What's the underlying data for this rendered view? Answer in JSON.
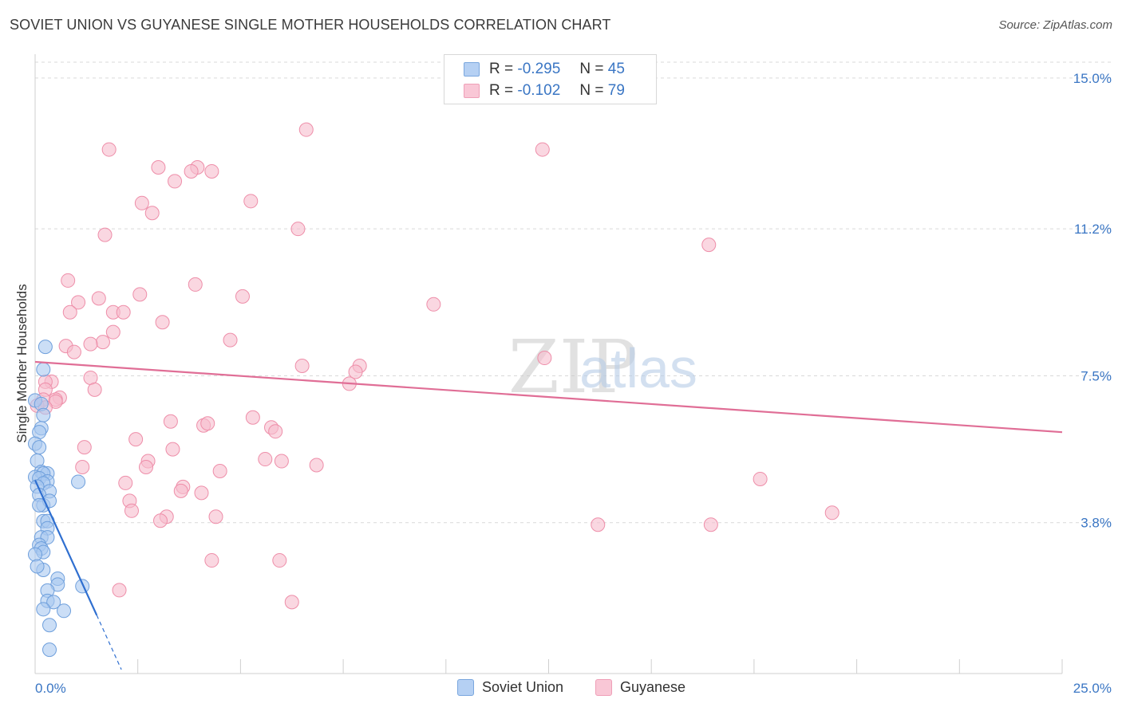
{
  "header": {
    "title": "SOVIET UNION VS GUYANESE SINGLE MOTHER HOUSEHOLDS CORRELATION CHART",
    "source": "Source: ZipAtlas.com"
  },
  "watermark": {
    "zip": "ZIP",
    "atlas": "atlas"
  },
  "legend": [
    {
      "r_label": "R =",
      "r_value": "-0.295",
      "n_label": "N =",
      "n_value": "45"
    },
    {
      "r_label": "R =",
      "r_value": "-0.102",
      "n_label": "N =",
      "n_value": "79"
    }
  ],
  "colors": {
    "soviet_fill": "#a9c8f0",
    "soviet_stroke": "#6e9fdc",
    "soviet_line": "#2f6fd0",
    "guyanese_fill": "#f7bccd",
    "guyanese_stroke": "#ee8ea9",
    "guyanese_line": "#e06e96",
    "value_text": "#3a76c4",
    "grid": "#d9d9d9"
  },
  "chart_data": {
    "type": "scatter",
    "title": "SOVIET UNION VS GUYANESE SINGLE MOTHER HOUSEHOLDS CORRELATION CHART",
    "xlabel": "",
    "ylabel": "Single Mother Households",
    "xlim": [
      0,
      25
    ],
    "ylim": [
      0,
      15.4
    ],
    "x_tick_labels": [
      {
        "value": 0,
        "label": "0.0%"
      },
      {
        "value": 25,
        "label": "25.0%"
      }
    ],
    "y_tick_labels": [
      {
        "value": 3.8,
        "label": "3.8%"
      },
      {
        "value": 7.5,
        "label": "7.5%"
      },
      {
        "value": 11.2,
        "label": "11.2%"
      },
      {
        "value": 15.0,
        "label": "15.0%"
      }
    ],
    "x_minor_ticks": [
      2.5,
      5,
      7.5,
      10,
      12.5,
      15,
      17.5,
      20,
      22.5,
      25
    ],
    "series": [
      {
        "name": "Soviet Union",
        "r": -0.295,
        "n": 45,
        "trend": {
          "x0": 0,
          "y0": 4.87,
          "x1": 1.5,
          "y1": 1.47,
          "dash_to_x": 2.1,
          "dash_to_y": 0.1
        },
        "points": [
          [
            0.25,
            8.23
          ],
          [
            0.2,
            7.66
          ],
          [
            0.0,
            6.88
          ],
          [
            0.15,
            6.79
          ],
          [
            0.2,
            6.51
          ],
          [
            0.15,
            6.18
          ],
          [
            0.1,
            6.08
          ],
          [
            0.0,
            5.79
          ],
          [
            0.1,
            5.7
          ],
          [
            0.05,
            5.36
          ],
          [
            0.15,
            5.08
          ],
          [
            0.3,
            5.04
          ],
          [
            0.2,
            5.04
          ],
          [
            0.0,
            4.95
          ],
          [
            0.1,
            4.92
          ],
          [
            0.3,
            4.84
          ],
          [
            0.2,
            4.79
          ],
          [
            0.05,
            4.71
          ],
          [
            0.35,
            4.59
          ],
          [
            0.1,
            4.5
          ],
          [
            0.2,
            4.24
          ],
          [
            0.35,
            4.35
          ],
          [
            0.1,
            4.24
          ],
          [
            1.05,
            4.83
          ],
          [
            0.2,
            3.84
          ],
          [
            0.3,
            3.84
          ],
          [
            0.3,
            3.66
          ],
          [
            0.15,
            3.43
          ],
          [
            0.3,
            3.43
          ],
          [
            0.1,
            3.24
          ],
          [
            0.15,
            3.15
          ],
          [
            0.2,
            3.06
          ],
          [
            0.2,
            2.61
          ],
          [
            0.55,
            2.39
          ],
          [
            0.55,
            2.24
          ],
          [
            1.15,
            2.2
          ],
          [
            0.3,
            2.09
          ],
          [
            0.3,
            1.83
          ],
          [
            0.45,
            1.8
          ],
          [
            0.2,
            1.62
          ],
          [
            0.7,
            1.58
          ],
          [
            0.35,
            1.22
          ],
          [
            0.35,
            0.6
          ],
          [
            0.0,
            3.0
          ],
          [
            0.05,
            2.7
          ]
        ]
      },
      {
        "name": "Guyanese",
        "r": -0.102,
        "n": 79,
        "trend": {
          "x0": 0,
          "y0": 7.85,
          "x1": 25,
          "y1": 6.08
        },
        "points": [
          [
            6.6,
            13.7
          ],
          [
            12.35,
            13.2
          ],
          [
            1.8,
            13.2
          ],
          [
            3.0,
            12.75
          ],
          [
            3.95,
            12.75
          ],
          [
            4.3,
            12.65
          ],
          [
            3.8,
            12.65
          ],
          [
            3.4,
            12.4
          ],
          [
            5.25,
            11.9
          ],
          [
            2.6,
            11.85
          ],
          [
            2.85,
            11.6
          ],
          [
            6.4,
            11.2
          ],
          [
            1.7,
            11.05
          ],
          [
            16.4,
            10.8
          ],
          [
            0.8,
            9.9
          ],
          [
            3.9,
            9.8
          ],
          [
            2.55,
            9.55
          ],
          [
            5.05,
            9.5
          ],
          [
            1.55,
            9.45
          ],
          [
            1.05,
            9.35
          ],
          [
            9.7,
            9.3
          ],
          [
            1.9,
            9.1
          ],
          [
            2.15,
            9.1
          ],
          [
            0.85,
            9.1
          ],
          [
            3.1,
            8.85
          ],
          [
            1.9,
            8.6
          ],
          [
            4.75,
            8.4
          ],
          [
            1.65,
            8.35
          ],
          [
            1.35,
            8.3
          ],
          [
            0.75,
            8.25
          ],
          [
            0.95,
            8.1
          ],
          [
            12.4,
            7.95
          ],
          [
            7.9,
            7.75
          ],
          [
            6.5,
            7.75
          ],
          [
            7.8,
            7.6
          ],
          [
            1.35,
            7.45
          ],
          [
            0.4,
            7.35
          ],
          [
            0.25,
            7.35
          ],
          [
            7.65,
            7.3
          ],
          [
            1.45,
            7.15
          ],
          [
            0.25,
            7.15
          ],
          [
            0.6,
            6.95
          ],
          [
            0.5,
            6.9
          ],
          [
            0.2,
            6.9
          ],
          [
            0.5,
            6.85
          ],
          [
            0.05,
            6.75
          ],
          [
            0.25,
            6.7
          ],
          [
            5.3,
            6.45
          ],
          [
            3.3,
            6.35
          ],
          [
            4.1,
            6.25
          ],
          [
            4.2,
            6.3
          ],
          [
            5.75,
            6.2
          ],
          [
            5.85,
            6.1
          ],
          [
            2.45,
            5.9
          ],
          [
            1.2,
            5.7
          ],
          [
            3.35,
            5.65
          ],
          [
            5.6,
            5.4
          ],
          [
            6.0,
            5.35
          ],
          [
            2.75,
            5.35
          ],
          [
            6.85,
            5.25
          ],
          [
            2.7,
            5.2
          ],
          [
            1.15,
            5.2
          ],
          [
            4.5,
            5.1
          ],
          [
            2.2,
            4.8
          ],
          [
            17.65,
            4.9
          ],
          [
            3.6,
            4.7
          ],
          [
            3.55,
            4.6
          ],
          [
            4.05,
            4.55
          ],
          [
            2.3,
            4.35
          ],
          [
            2.35,
            4.1
          ],
          [
            19.4,
            4.05
          ],
          [
            3.2,
            3.95
          ],
          [
            4.4,
            3.95
          ],
          [
            3.05,
            3.85
          ],
          [
            13.7,
            3.75
          ],
          [
            16.45,
            3.75
          ],
          [
            4.3,
            2.85
          ],
          [
            5.95,
            2.85
          ],
          [
            2.05,
            2.1
          ],
          [
            6.25,
            1.8
          ]
        ]
      }
    ]
  },
  "bottom_legend": [
    "Soviet Union",
    "Guyanese"
  ]
}
